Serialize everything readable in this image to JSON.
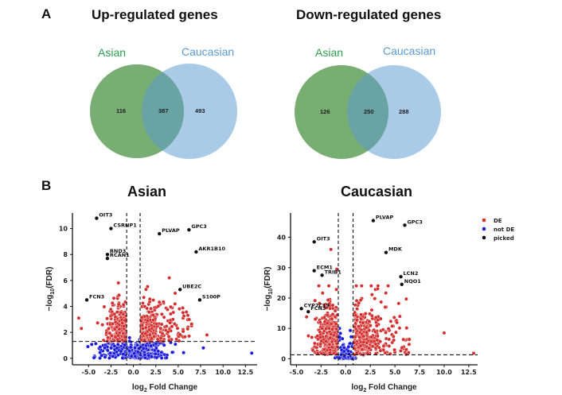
{
  "panels": {
    "a_label": "A",
    "b_label": "B"
  },
  "colors": {
    "asian_set": "#78ae72",
    "caucasian_set": "#a9cbe8",
    "overlap": "#6aa3a3",
    "asian_label": "#2e9e4f",
    "caucasian_label": "#5b9bd0",
    "de": "#d32f2f",
    "not_de": "#1a1adb",
    "picked": "#111111"
  },
  "chart_data": [
    {
      "type": "venn",
      "title": "Up-regulated genes",
      "sets": [
        {
          "name": "Asian",
          "only": 116
        },
        {
          "name": "Caucasian",
          "only": 493
        }
      ],
      "intersection": 387
    },
    {
      "type": "venn",
      "title": "Down-regulated genes",
      "sets": [
        {
          "name": "Asian",
          "only": 126
        },
        {
          "name": "Caucasian",
          "only": 288
        }
      ],
      "intersection": 250
    },
    {
      "type": "scatter",
      "title": "Asian",
      "xlabel": "log2 Fold Change",
      "ylabel": "-log10(FDR)",
      "xlim": [
        -6.8,
        13.8
      ],
      "ylim": [
        -0.5,
        11.2
      ],
      "xticks": [
        -5.0,
        -2.5,
        0.0,
        2.5,
        5.0,
        7.5,
        10.0,
        12.5
      ],
      "yticks": [
        0,
        2,
        4,
        6,
        8,
        10
      ],
      "fc_threshold": [
        -0.75,
        0.75
      ],
      "fdr_threshold": 1.3,
      "grid": false,
      "legend": null,
      "picked": [
        {
          "gene": "OIT3",
          "x": -4.1,
          "y": 10.8
        },
        {
          "gene": "CSRNP1",
          "x": -2.5,
          "y": 10.0
        },
        {
          "gene": "RND3",
          "x": -2.9,
          "y": 8.0
        },
        {
          "gene": "RCAN1",
          "x": -2.9,
          "y": 7.7
        },
        {
          "gene": "FCN3",
          "x": -5.2,
          "y": 4.5
        },
        {
          "gene": "PLVAP",
          "x": 2.9,
          "y": 9.6
        },
        {
          "gene": "GPC3",
          "x": 6.2,
          "y": 9.9
        },
        {
          "gene": "AKR1B10",
          "x": 7.0,
          "y": 8.2
        },
        {
          "gene": "UBE2C",
          "x": 5.2,
          "y": 5.3
        },
        {
          "gene": "S100P",
          "x": 7.4,
          "y": 4.5
        }
      ],
      "notable_points": [
        {
          "x": 7.8,
          "y": 0.8,
          "class": "not DE"
        },
        {
          "x": 13.2,
          "y": 0.4,
          "class": "not DE"
        },
        {
          "x": 8.2,
          "y": 1.8,
          "class": "DE"
        },
        {
          "x": -6.1,
          "y": 3.1,
          "class": "DE"
        },
        {
          "x": -5.8,
          "y": 2.3,
          "class": "DE"
        },
        {
          "x": 4.0,
          "y": 6.2,
          "class": "DE"
        }
      ]
    },
    {
      "type": "scatter",
      "title": "Caucasian",
      "xlabel": "log2 Fold Change",
      "ylabel": "-log10(FDR)",
      "xlim": [
        -5.6,
        13.4
      ],
      "ylim": [
        -2,
        48
      ],
      "xticks": [
        -5.0,
        -2.5,
        0.0,
        2.5,
        5.0,
        7.5,
        10.0,
        12.5
      ],
      "yticks": [
        0,
        10,
        20,
        30,
        40
      ],
      "fc_threshold": [
        -0.75,
        0.75
      ],
      "fdr_threshold": 1.3,
      "grid": false,
      "legend": {
        "position": "top-right",
        "entries": [
          {
            "label": "DE",
            "class": "DE"
          },
          {
            "label": "not DE",
            "class": "not DE"
          },
          {
            "label": "picked",
            "class": "picked"
          }
        ]
      },
      "picked": [
        {
          "gene": "OIT3",
          "x": -3.2,
          "y": 38.5
        },
        {
          "gene": "ECM1",
          "x": -3.2,
          "y": 29.0
        },
        {
          "gene": "TRIB1",
          "x": -2.4,
          "y": 27.5
        },
        {
          "gene": "CYP2C19",
          "x": -4.5,
          "y": 16.5
        },
        {
          "gene": "FCN3",
          "x": -3.8,
          "y": 15.5
        },
        {
          "gene": "PLVAP",
          "x": 2.8,
          "y": 45.5
        },
        {
          "gene": "GPC3",
          "x": 6.0,
          "y": 44.0
        },
        {
          "gene": "MDK",
          "x": 4.1,
          "y": 35.0
        },
        {
          "gene": "LCN2",
          "x": 5.6,
          "y": 27.0
        },
        {
          "gene": "NQO1",
          "x": 5.7,
          "y": 24.5
        }
      ],
      "notable_points": [
        {
          "x": 10.0,
          "y": 8.5,
          "class": "DE"
        },
        {
          "x": 13.0,
          "y": 1.8,
          "class": "DE"
        },
        {
          "x": -1.5,
          "y": 36.0,
          "class": "DE"
        },
        {
          "x": -0.9,
          "y": 29.5,
          "class": "DE"
        },
        {
          "x": 1.8,
          "y": 1.2,
          "class": "not DE"
        }
      ]
    }
  ]
}
